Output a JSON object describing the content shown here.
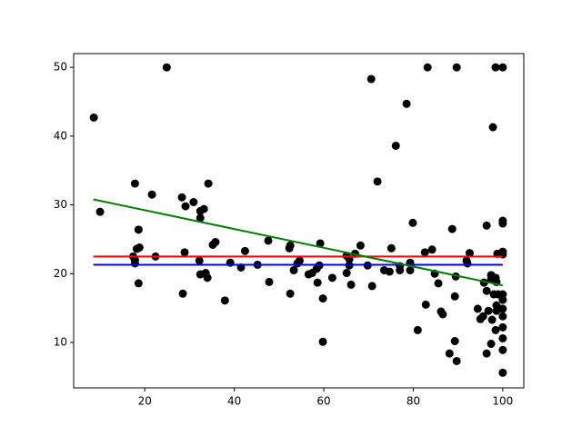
{
  "chart_data": {
    "type": "scatter",
    "color": "#000000",
    "xlim": [
      4.1,
      104.7
    ],
    "ylim": [
      3.4,
      52.0
    ],
    "xticks": [
      20,
      40,
      60,
      80,
      100
    ],
    "yticks": [
      10,
      20,
      30,
      40,
      50
    ],
    "grid": false,
    "x": [
      8.6,
      10.0,
      24.9,
      17.8,
      21.6,
      18.6,
      17.4,
      17.8,
      17.8,
      18.2,
      18.8,
      18.6,
      22.4,
      28.3,
      29.1,
      30.9,
      32.4,
      33.2,
      32.4,
      34.2,
      28.9,
      28.5,
      32.2,
      32.4,
      33.6,
      34.0,
      35.2,
      35.8,
      37.9,
      39.1,
      41.5,
      42.4,
      45.2,
      47.6,
      47.8,
      52.3,
      52.5,
      52.5,
      53.3,
      54.1,
      54.6,
      56.6,
      57.4,
      58.4,
      59.2,
      58.6,
      59.0,
      59.8,
      59.8,
      61.9,
      65.1,
      65.1,
      65.7,
      65.7,
      66.1,
      67.0,
      68.2,
      69.8,
      70.6,
      70.8,
      72.0,
      73.5,
      74.7,
      75.1,
      76.1,
      77.0,
      77.0,
      78.5,
      79.3,
      79.3,
      79.9,
      81.0,
      82.6,
      83.2,
      82.8,
      84.2,
      84.8,
      85.6,
      86.2,
      86.6,
      88.1,
      88.7,
      89.3,
      89.3,
      89.7,
      89.7,
      89.5,
      91.9,
      92.6,
      92.1,
      94.4,
      95.0,
      95.6,
      96.4,
      95.8,
      96.4,
      96.4,
      96.8,
      97.4,
      97.4,
      97.4,
      97.8,
      97.6,
      98.0,
      98.4,
      98.4,
      98.6,
      98.8,
      98.4,
      98.6,
      98.6,
      99.0,
      100,
      100,
      100,
      100,
      100,
      100,
      100,
      100,
      100,
      100,
      100,
      100,
      100
    ],
    "y": [
      42.7,
      29.0,
      50,
      33.1,
      31.5,
      26.4,
      22.5,
      22.0,
      21.5,
      23.6,
      23.8,
      18.6,
      22.5,
      31.1,
      29.8,
      30.4,
      29.1,
      29.4,
      28.1,
      33.1,
      23.1,
      17.1,
      21.9,
      19.9,
      20.1,
      19.4,
      24.2,
      24.6,
      16.1,
      21.6,
      20.9,
      23.3,
      21.3,
      24.8,
      18.8,
      23.7,
      24.1,
      17.1,
      20.5,
      21.5,
      21.9,
      19.9,
      20.1,
      20.7,
      24.4,
      18.7,
      21.2,
      16.4,
      10.1,
      19.4,
      20.1,
      22.6,
      21.2,
      22.1,
      18.4,
      22.9,
      24.1,
      21.2,
      48.3,
      18.2,
      33.4,
      20.5,
      20.3,
      23.7,
      38.6,
      20.5,
      21.1,
      44.7,
      20.5,
      21.6,
      27.4,
      11.8,
      23.1,
      50,
      15.5,
      23.5,
      20.0,
      18.6,
      14.5,
      14.1,
      8.4,
      26.5,
      16.7,
      10.2,
      7.3,
      50,
      19.6,
      21.9,
      23.0,
      21.5,
      14.9,
      13.4,
      13.8,
      17.5,
      18.7,
      27.0,
      8.4,
      14.6,
      9.8,
      19.8,
      19.2,
      41.3,
      13.3,
      17.0,
      50,
      19.4,
      18.8,
      22.9,
      11.8,
      15.4,
      14.6,
      17.0,
      50,
      27.7,
      27.3,
      23.2,
      22.8,
      17.0,
      16.2,
      14.9,
      13.8,
      12.2,
      10.6,
      8.9,
      5.6
    ],
    "lines": [
      {
        "color": "#ff0000",
        "x": [
          8.5,
          100
        ],
        "y": [
          22.5,
          22.5
        ]
      },
      {
        "color": "#0000ff",
        "x": [
          8.5,
          100
        ],
        "y": [
          21.3,
          21.3
        ]
      },
      {
        "color": "#008000",
        "x": [
          8.5,
          100
        ],
        "y": [
          30.8,
          18.3
        ]
      }
    ]
  }
}
